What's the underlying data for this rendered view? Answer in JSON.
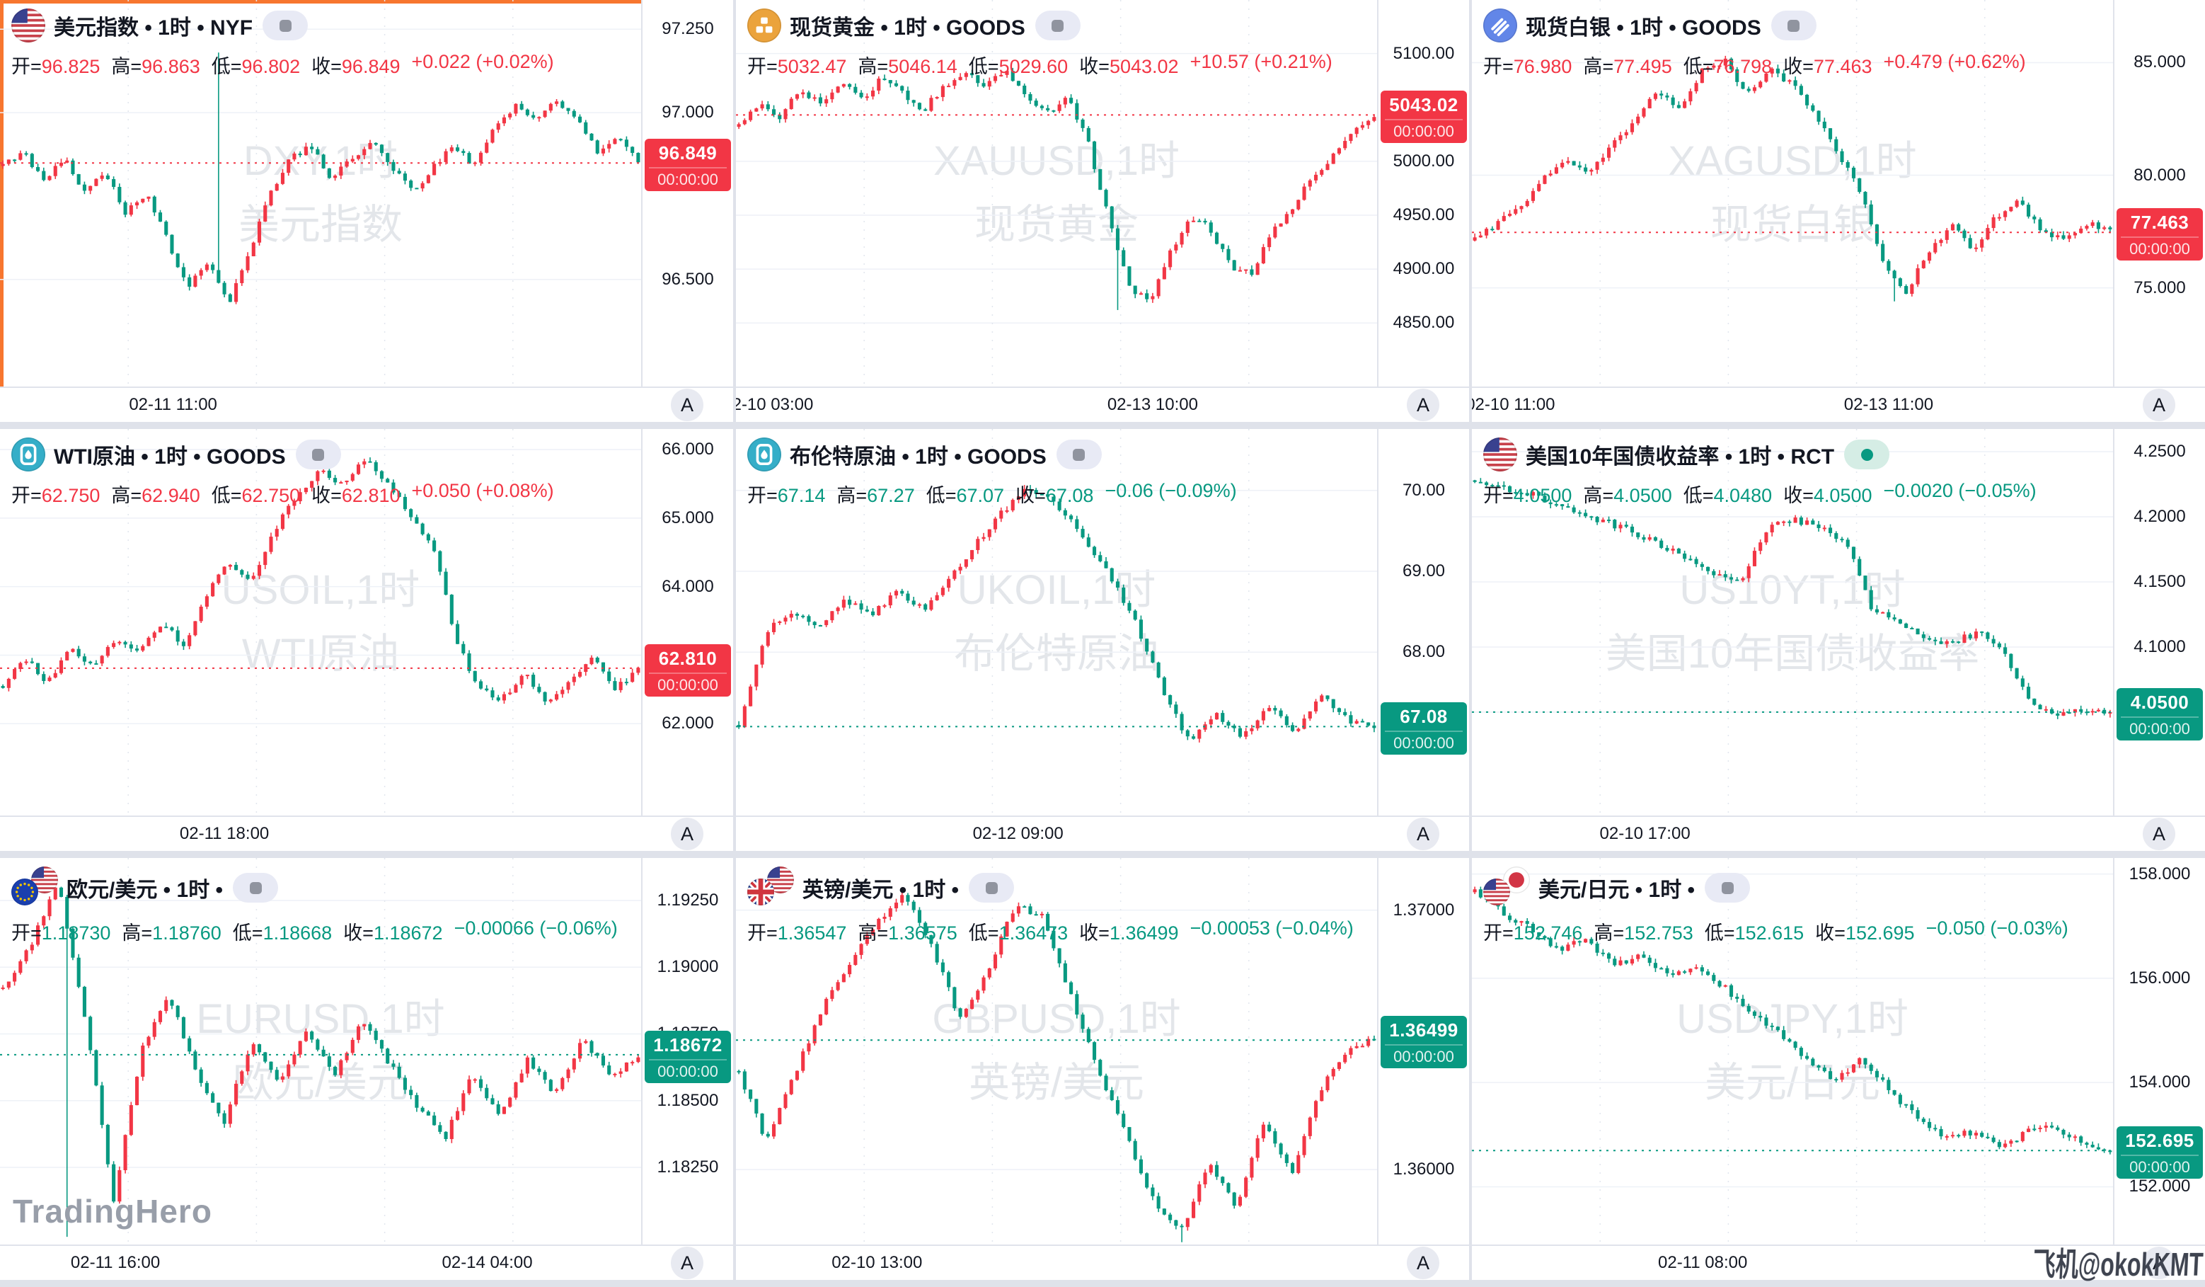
{
  "corner_button": "A",
  "logo_watermark": "TradingHero",
  "user_watermark": "飞机@okokKMT",
  "countdown": "00:00:00",
  "ohlc_labels": {
    "open": "开=",
    "high": "高=",
    "low": "低=",
    "close": "收="
  },
  "colors": {
    "up": "#F23645",
    "down": "#089981",
    "selected_border": "#F7762F",
    "axis_text": "#131722",
    "grid": "#eef1f7"
  },
  "panels": [
    {
      "title": "美元指数 • 1时 • NYF",
      "icons": [
        "us"
      ],
      "status": "closed",
      "selected": true,
      "wm": [
        "DXY,1时",
        "美元指数"
      ],
      "ohlc": {
        "o": "96.825",
        "h": "96.863",
        "l": "96.802",
        "c": "96.849",
        "chg": "+0.022 (+0.02%)",
        "dir": "up"
      },
      "axis_ticks": [
        {
          "t": "97.250",
          "p": 97.25
        },
        {
          "t": "97.000",
          "p": 97.0
        },
        {
          "t": "96.500",
          "p": 96.5
        }
      ],
      "label": {
        "t": "96.849",
        "cd": "00:00:00",
        "dir": "up",
        "p": 96.849
      },
      "time_ticks": [
        {
          "t": "02-11 11:00",
          "f": 0.27
        }
      ]
    },
    {
      "title": "现货黄金 • 1时 • GOODS",
      "icons": [
        "gold"
      ],
      "status": "closed",
      "selected": false,
      "wm": [
        "XAUUSD,1时",
        "现货黄金"
      ],
      "ohlc": {
        "o": "5032.47",
        "h": "5046.14",
        "l": "5029.60",
        "c": "5043.02",
        "chg": "+10.57 (+0.21%)",
        "dir": "up"
      },
      "axis_ticks": [
        {
          "t": "5100.00",
          "p": 5100
        },
        {
          "t": "5000.00",
          "p": 5000
        },
        {
          "t": "4950.00",
          "p": 4950
        },
        {
          "t": "4900.00",
          "p": 4900
        },
        {
          "t": "4850.00",
          "p": 4850
        }
      ],
      "label": {
        "t": "5043.02",
        "cd": "00:00:00",
        "dir": "up",
        "p": 5043.02
      },
      "time_ticks": [
        {
          "t": "02-10 03:00",
          "f": 0.05
        },
        {
          "t": "02-13 10:00",
          "f": 0.65
        }
      ]
    },
    {
      "title": "现货白银 • 1时 • GOODS",
      "icons": [
        "silver"
      ],
      "status": "closed",
      "selected": false,
      "wm": [
        "XAGUSD,1时",
        "现货白银"
      ],
      "ohlc": {
        "o": "76.980",
        "h": "77.495",
        "l": "76.798",
        "c": "77.463",
        "chg": "+0.479 (+0.62%)",
        "dir": "up"
      },
      "axis_ticks": [
        {
          "t": "85.000",
          "p": 85
        },
        {
          "t": "80.000",
          "p": 80
        },
        {
          "t": "75.000",
          "p": 75
        }
      ],
      "label": {
        "t": "77.463",
        "cd": "00:00:00",
        "dir": "up",
        "p": 77.463
      },
      "time_ticks": [
        {
          "t": "02-10 11:00",
          "f": 0.06
        },
        {
          "t": "02-13 11:00",
          "f": 0.65
        }
      ]
    },
    {
      "title": "WTI原油 • 1时 • GOODS",
      "icons": [
        "oil"
      ],
      "status": "closed",
      "selected": false,
      "wm": [
        "USOIL,1时",
        "WTI原油"
      ],
      "ohlc": {
        "o": "62.750",
        "h": "62.940",
        "l": "62.750",
        "c": "62.810",
        "chg": "+0.050 (+0.08%)",
        "dir": "up"
      },
      "axis_ticks": [
        {
          "t": "66.000",
          "p": 66
        },
        {
          "t": "65.000",
          "p": 65
        },
        {
          "t": "64.000",
          "p": 64
        },
        {
          "t": "63.000",
          "p": 63
        },
        {
          "t": "62.000",
          "p": 62
        }
      ],
      "label": {
        "t": "62.810",
        "cd": "00:00:00",
        "dir": "up",
        "p": 62.81
      },
      "time_ticks": [
        {
          "t": "02-11 18:00",
          "f": 0.35
        }
      ]
    },
    {
      "title": "布伦特原油 • 1时 • GOODS",
      "icons": [
        "oil"
      ],
      "status": "closed",
      "selected": false,
      "wm": [
        "UKOIL,1时",
        "布伦特原油"
      ],
      "ohlc": {
        "o": "67.14",
        "h": "67.27",
        "l": "67.07",
        "c": "67.08",
        "chg": "−0.06 (−0.09%)",
        "dir": "down"
      },
      "axis_ticks": [
        {
          "t": "70.00",
          "p": 70
        },
        {
          "t": "69.00",
          "p": 69
        },
        {
          "t": "68.00",
          "p": 68
        }
      ],
      "label": {
        "t": "67.08",
        "cd": "00:00:00",
        "dir": "down",
        "p": 67.08
      },
      "time_ticks": [
        {
          "t": "02-12 09:00",
          "f": 0.44
        }
      ]
    },
    {
      "title": "美国10年国债收益率 • 1时 • RCT",
      "icons": [
        "us"
      ],
      "status": "open",
      "selected": false,
      "wm": [
        "US10YT,1时",
        "美国10年国债收益率"
      ],
      "ohlc": {
        "o": "4.0500",
        "h": "4.0500",
        "l": "4.0480",
        "c": "4.0500",
        "chg": "−0.0020 (−0.05%)",
        "dir": "down"
      },
      "axis_ticks": [
        {
          "t": "4.2500",
          "p": 4.25
        },
        {
          "t": "4.2000",
          "p": 4.2
        },
        {
          "t": "4.1500",
          "p": 4.15
        },
        {
          "t": "4.1000",
          "p": 4.1
        },
        {
          "t": "4.0500",
          "p": 4.05
        }
      ],
      "label": {
        "t": "4.0500",
        "cd": "00:00:00",
        "dir": "down",
        "p": 4.05
      },
      "time_ticks": [
        {
          "t": "02-10 17:00",
          "f": 0.27
        }
      ]
    },
    {
      "title": "欧元/美元 • 1时 •",
      "icons": [
        "eu",
        "us"
      ],
      "status": "closed",
      "selected": false,
      "wm": [
        "EURUSD,1时",
        "欧元/美元"
      ],
      "ohlc": {
        "o": "1.18730",
        "h": "1.18760",
        "l": "1.18668",
        "c": "1.18672",
        "chg": "−0.00066 (−0.06%)",
        "dir": "down"
      },
      "axis_ticks": [
        {
          "t": "1.19250",
          "p": 1.1925
        },
        {
          "t": "1.19000",
          "p": 1.19
        },
        {
          "t": "1.18750",
          "p": 1.1875
        },
        {
          "t": "1.18500",
          "p": 1.185
        },
        {
          "t": "1.18250",
          "p": 1.1825
        }
      ],
      "label": {
        "t": "1.18672",
        "cd": "00:00:00",
        "dir": "down",
        "p": 1.18672
      },
      "time_ticks": [
        {
          "t": "02-11 16:00",
          "f": 0.18
        },
        {
          "t": "02-14 04:00",
          "f": 0.76
        }
      ]
    },
    {
      "title": "英镑/美元 • 1时 •",
      "icons": [
        "gb",
        "us"
      ],
      "status": "closed",
      "selected": false,
      "wm": [
        "GBPUSD,1时",
        "英镑/美元"
      ],
      "ohlc": {
        "o": "1.36547",
        "h": "1.36575",
        "l": "1.36473",
        "c": "1.36499",
        "chg": "−0.00053 (−0.04%)",
        "dir": "down"
      },
      "axis_ticks": [
        {
          "t": "1.37000",
          "p": 1.37
        },
        {
          "t": "1.36000",
          "p": 1.36
        }
      ],
      "label": {
        "t": "1.36499",
        "cd": "00:00:00",
        "dir": "down",
        "p": 1.36499
      },
      "time_ticks": [
        {
          "t": "02-10 13:00",
          "f": 0.22
        }
      ]
    },
    {
      "title": "美元/日元 • 1时 •",
      "icons": [
        "us",
        "jp"
      ],
      "status": "closed",
      "selected": false,
      "wm": [
        "USDJPY,1时",
        "美元/日元"
      ],
      "ohlc": {
        "o": "152.746",
        "h": "152.753",
        "l": "152.615",
        "c": "152.695",
        "chg": "−0.050 (−0.03%)",
        "dir": "down"
      },
      "axis_ticks": [
        {
          "t": "158.000",
          "p": 158
        },
        {
          "t": "156.000",
          "p": 156
        },
        {
          "t": "154.000",
          "p": 154
        },
        {
          "t": "152.000",
          "p": 152
        }
      ],
      "label": {
        "t": "152.695",
        "cd": "00:00:00",
        "dir": "down",
        "p": 152.695
      },
      "time_ticks": [
        {
          "t": "02-11 08:00",
          "f": 0.36
        }
      ]
    }
  ],
  "chart_data": [
    {
      "type": "candlestick",
      "symbol": "DXY",
      "name": "美元指数",
      "interval": "1时",
      "exchange": "NYF",
      "open": 96.825,
      "high": 96.863,
      "low": 96.802,
      "close": 96.849,
      "change": 0.022,
      "change_pct": "+0.02%",
      "current": 96.849,
      "y_top": 97.3375,
      "y_bottom": 96.179,
      "axis_ticks": [
        97.25,
        97.0,
        96.5
      ],
      "time_ticks": [
        "02-11 11:00"
      ],
      "trend_closes": [
        96.84,
        96.88,
        96.8,
        96.86,
        96.76,
        96.82,
        96.7,
        96.76,
        96.62,
        96.48,
        96.55,
        96.42,
        96.58,
        96.75,
        96.86,
        96.9,
        96.8,
        96.86,
        96.92,
        96.84,
        96.76,
        96.84,
        96.9,
        96.84,
        96.96,
        97.02,
        96.97,
        97.04,
        96.98,
        96.88,
        96.92,
        96.85
      ],
      "spikes": [
        {
          "f": 0.335,
          "high": 97.18
        }
      ]
    },
    {
      "type": "candlestick",
      "symbol": "XAUUSD",
      "name": "现货黄金",
      "interval": "1时",
      "exchange": "GOODS",
      "open": 5032.47,
      "high": 5046.14,
      "low": 5029.6,
      "close": 5043.02,
      "change": 10.57,
      "change_pct": "+0.21%",
      "current": 5043.02,
      "y_top": 5149.7,
      "y_bottom": 4791.0,
      "axis_ticks": [
        5100,
        5000,
        4950,
        4900,
        4850
      ],
      "time_ticks": [
        "02-10 03:00",
        "02-13 10:00"
      ],
      "trend_closes": [
        5032,
        5055,
        5042,
        5066,
        5052,
        5072,
        5058,
        5078,
        5062,
        5048,
        5068,
        5082,
        5068,
        5084,
        5062,
        5044,
        5060,
        5020,
        4950,
        4885,
        4868,
        4915,
        4948,
        4938,
        4902,
        4896,
        4932,
        4958,
        4985,
        5005,
        5028,
        5043
      ],
      "spikes": [
        {
          "f": 0.6,
          "low": 4862
        }
      ]
    },
    {
      "type": "candlestick",
      "symbol": "XAGUSD",
      "name": "现货白银",
      "interval": "1时",
      "exchange": "GOODS",
      "open": 76.98,
      "high": 77.495,
      "low": 76.798,
      "close": 77.463,
      "change": 0.479,
      "change_pct": "+0.62%",
      "current": 77.463,
      "y_top": 87.78,
      "y_bottom": 70.62,
      "axis_ticks": [
        85,
        80,
        75
      ],
      "time_ticks": [
        "02-10 11:00",
        "02-13 11:00"
      ],
      "trend_closes": [
        77.1,
        77.9,
        78.6,
        79.8,
        80.6,
        80.1,
        81.3,
        82.4,
        83.8,
        83.0,
        84.6,
        85.1,
        83.6,
        84.8,
        84.0,
        82.6,
        81.0,
        79.2,
        76.2,
        74.8,
        76.6,
        77.8,
        76.6,
        78.2,
        78.8,
        77.6,
        77.1,
        77.9,
        77.46
      ],
      "spikes": [
        {
          "f": 0.66,
          "low": 74.4
        }
      ]
    },
    {
      "type": "candlestick",
      "symbol": "USOIL",
      "name": "WTI原油",
      "interval": "1时",
      "exchange": "GOODS",
      "open": 62.75,
      "high": 62.94,
      "low": 62.75,
      "close": 62.81,
      "change": 0.05,
      "change_pct": "+0.08%",
      "current": 62.81,
      "y_top": 66.3,
      "y_bottom": 60.66,
      "axis_ticks": [
        66,
        65,
        64,
        63,
        62
      ],
      "time_ticks": [
        "02-11 18:00"
      ],
      "trend_closes": [
        62.55,
        62.95,
        62.6,
        63.15,
        62.8,
        63.25,
        63.05,
        63.45,
        63.15,
        63.9,
        64.35,
        64.1,
        64.85,
        65.35,
        65.7,
        65.45,
        65.9,
        65.5,
        65.05,
        64.55,
        63.2,
        62.5,
        62.35,
        62.75,
        62.3,
        62.6,
        62.95,
        62.5,
        62.81
      ],
      "spikes": []
    },
    {
      "type": "candlestick",
      "symbol": "UKOIL",
      "name": "布伦特原油",
      "interval": "1时",
      "exchange": "GOODS",
      "open": 67.14,
      "high": 67.27,
      "low": 67.07,
      "close": 67.08,
      "change": -0.06,
      "change_pct": "−0.09%",
      "current": 67.08,
      "y_top": 70.76,
      "y_bottom": 65.98,
      "axis_ticks": [
        70,
        69,
        68
      ],
      "time_ticks": [
        "02-12 09:00"
      ],
      "trend_closes": [
        67.1,
        68.25,
        68.5,
        68.3,
        68.65,
        68.45,
        68.75,
        68.55,
        68.95,
        69.35,
        69.75,
        70.05,
        69.8,
        69.45,
        68.95,
        68.35,
        67.55,
        66.9,
        67.25,
        66.95,
        67.35,
        67.0,
        67.45,
        67.15,
        67.08
      ],
      "spikes": []
    },
    {
      "type": "candlestick",
      "symbol": "US10YT",
      "name": "美国10年国债收益率",
      "interval": "1时",
      "exchange": "RCT",
      "open": 4.05,
      "high": 4.05,
      "low": 4.048,
      "close": 4.05,
      "change": -0.002,
      "change_pct": "−0.05%",
      "current": 4.05,
      "y_top": 4.2674,
      "y_bottom": 3.9706,
      "axis_ticks": [
        4.25,
        4.2,
        4.15,
        4.1,
        4.05
      ],
      "time_ticks": [
        "02-10 17:00"
      ],
      "trend_closes": [
        4.228,
        4.222,
        4.218,
        4.21,
        4.202,
        4.196,
        4.188,
        4.178,
        4.168,
        4.155,
        4.148,
        4.19,
        4.198,
        4.192,
        4.182,
        4.13,
        4.118,
        4.108,
        4.102,
        4.112,
        4.094,
        4.058,
        4.048,
        4.052,
        4.05
      ],
      "spikes": []
    },
    {
      "type": "candlestick",
      "symbol": "EURUSD",
      "name": "欧元/美元",
      "interval": "1时",
      "exchange": "",
      "open": 1.1873,
      "high": 1.1876,
      "low": 1.18668,
      "close": 1.18672,
      "change": -0.00066,
      "change_pct": "−0.06%",
      "current": 1.18672,
      "y_top": 1.19409,
      "y_bottom": 1.17961,
      "axis_ticks": [
        1.1925,
        1.19,
        1.1875,
        1.185,
        1.1825
      ],
      "time_ticks": [
        "02-11 16:00",
        "02-14 04:00"
      ],
      "trend_closes": [
        1.1892,
        1.1908,
        1.1932,
        1.188,
        1.1812,
        1.1868,
        1.189,
        1.186,
        1.1842,
        1.1872,
        1.1856,
        1.1876,
        1.186,
        1.188,
        1.1864,
        1.1848,
        1.1836,
        1.186,
        1.1844,
        1.1866,
        1.1852,
        1.1874,
        1.1858,
        1.1867
      ],
      "spikes": [
        {
          "f": 0.105,
          "low": 1.1799
        }
      ]
    },
    {
      "type": "candlestick",
      "symbol": "GBPUSD",
      "name": "英镑/美元",
      "interval": "1时",
      "exchange": "",
      "open": 1.36547,
      "high": 1.36575,
      "low": 1.36473,
      "close": 1.36499,
      "change": -0.00053,
      "change_pct": "−0.04%",
      "current": 1.36499,
      "y_top": 1.37201,
      "y_bottom": 1.35711,
      "axis_ticks": [
        1.37,
        1.36
      ],
      "time_ticks": [
        "02-10 13:00"
      ],
      "trend_closes": [
        1.3638,
        1.361,
        1.3636,
        1.3662,
        1.3678,
        1.3696,
        1.3706,
        1.3686,
        1.3658,
        1.3676,
        1.3702,
        1.3698,
        1.3668,
        1.3638,
        1.3614,
        1.3588,
        1.3576,
        1.3602,
        1.3586,
        1.3618,
        1.3598,
        1.363,
        1.3646,
        1.36499
      ],
      "spikes": [
        {
          "f": 0.7,
          "low": 1.3572
        }
      ]
    },
    {
      "type": "candlestick",
      "symbol": "USDJPY",
      "name": "美元/日元",
      "interval": "1时",
      "exchange": "",
      "open": 152.746,
      "high": 152.753,
      "low": 152.615,
      "close": 152.695,
      "change": -0.05,
      "change_pct": "−0.03%",
      "current": 152.695,
      "y_top": 158.307,
      "y_bottom": 150.893,
      "axis_ticks": [
        158,
        156,
        154,
        152
      ],
      "time_ticks": [
        "02-11 08:00"
      ],
      "trend_closes": [
        157.65,
        157.25,
        156.95,
        156.55,
        156.75,
        156.25,
        156.45,
        156.05,
        156.25,
        155.85,
        155.35,
        154.95,
        154.45,
        154.05,
        154.45,
        153.85,
        153.35,
        152.95,
        153.05,
        152.75,
        153.05,
        153.15,
        152.85,
        152.695
      ],
      "spikes": []
    }
  ]
}
